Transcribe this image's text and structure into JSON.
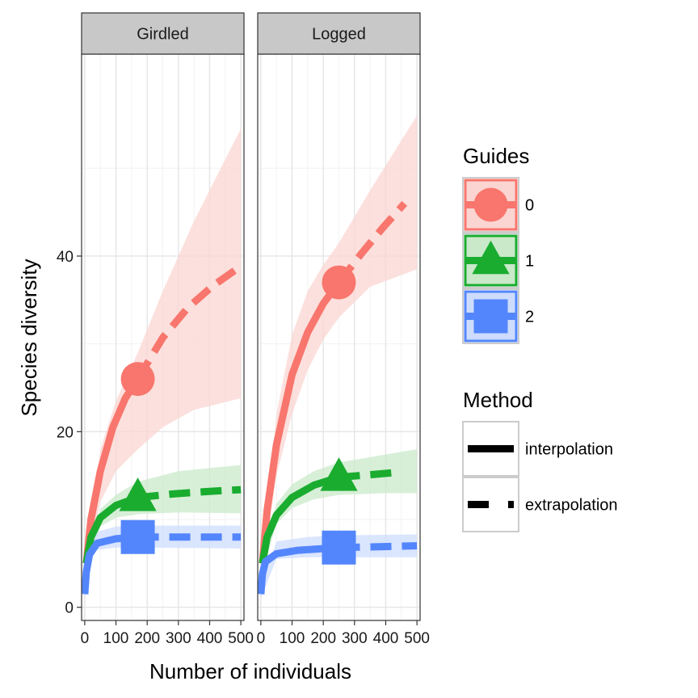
{
  "chart_data": {
    "type": "line",
    "xlabel": "Number of individuals",
    "ylabel": "Species diversity",
    "xlim": [
      -10,
      510
    ],
    "ylim": [
      -1.5,
      63
    ],
    "x_ticks": [
      0,
      100,
      200,
      300,
      400,
      500
    ],
    "y_ticks": [
      0,
      20,
      40
    ],
    "grid": true,
    "panels": [
      {
        "label": "Girdled",
        "observed_x": 170,
        "series": [
          {
            "guide": "0",
            "observed": [
              170,
              26
            ],
            "interpolation": [
              [
                5,
                5
              ],
              [
                20,
                10
              ],
              [
                50,
                15.5
              ],
              [
                90,
                20.5
              ],
              [
                130,
                23.8
              ],
              [
                170,
                26
              ]
            ],
            "extrapolation": [
              [
                170,
                26
              ],
              [
                250,
                30.7
              ],
              [
                330,
                34.1
              ],
              [
                410,
                36.6
              ],
              [
                490,
                38.6
              ]
            ],
            "ci_lower": [
              [
                5,
                4
              ],
              [
                50,
                12
              ],
              [
                100,
                15.5
              ],
              [
                170,
                18
              ],
              [
                250,
                20.5
              ],
              [
                350,
                22.5
              ],
              [
                500,
                23.8
              ]
            ],
            "ci_upper": [
              [
                5,
                6
              ],
              [
                50,
                18
              ],
              [
                100,
                23.5
              ],
              [
                170,
                29
              ],
              [
                250,
                36
              ],
              [
                350,
                44
              ],
              [
                500,
                54.5
              ]
            ]
          },
          {
            "guide": "1",
            "observed": [
              170,
              12.5
            ],
            "interpolation": [
              [
                5,
                5
              ],
              [
                20,
                8
              ],
              [
                50,
                10.2
              ],
              [
                100,
                11.6
              ],
              [
                170,
                12.5
              ]
            ],
            "extrapolation": [
              [
                170,
                12.5
              ],
              [
                280,
                12.9
              ],
              [
                400,
                13.2
              ],
              [
                500,
                13.4
              ]
            ],
            "ci_lower": [
              [
                5,
                4
              ],
              [
                50,
                9.2
              ],
              [
                100,
                10.2
              ],
              [
                170,
                10.6
              ],
              [
                300,
                10.8
              ],
              [
                500,
                10.7
              ]
            ],
            "ci_upper": [
              [
                5,
                6
              ],
              [
                50,
                11.2
              ],
              [
                100,
                12.8
              ],
              [
                170,
                14.3
              ],
              [
                300,
                15.5
              ],
              [
                500,
                16.2
              ]
            ]
          },
          {
            "guide": "2",
            "observed": [
              170,
              8
            ],
            "interpolation": [
              [
                0,
                1.5
              ],
              [
                5,
                4
              ],
              [
                15,
                6
              ],
              [
                40,
                7.3
              ],
              [
                100,
                7.8
              ],
              [
                170,
                8
              ]
            ],
            "extrapolation": [
              [
                170,
                8
              ],
              [
                300,
                8
              ],
              [
                500,
                8
              ]
            ],
            "ci_lower": [
              [
                0,
                1
              ],
              [
                30,
                6.5
              ],
              [
                100,
                6.8
              ],
              [
                170,
                6.8
              ],
              [
                500,
                6.7
              ]
            ],
            "ci_upper": [
              [
                0,
                2
              ],
              [
                30,
                8.5
              ],
              [
                100,
                9.2
              ],
              [
                170,
                9.3
              ],
              [
                500,
                9.3
              ]
            ]
          }
        ]
      },
      {
        "label": "Logged",
        "observed_x": 250,
        "series": [
          {
            "guide": "0",
            "observed": [
              250,
              37
            ],
            "interpolation": [
              [
                5,
                5
              ],
              [
                20,
                11
              ],
              [
                50,
                18.5
              ],
              [
                100,
                26.5
              ],
              [
                150,
                31.3
              ],
              [
                200,
                34.6
              ],
              [
                250,
                37
              ]
            ],
            "extrapolation": [
              [
                250,
                37
              ],
              [
                320,
                40.2
              ],
              [
                390,
                43.2
              ],
              [
                460,
                46
              ]
            ],
            "ci_lower": [
              [
                5,
                4
              ],
              [
                50,
                15
              ],
              [
                100,
                22
              ],
              [
                150,
                27
              ],
              [
                200,
                30.5
              ],
              [
                250,
                33
              ],
              [
                350,
                36.5
              ],
              [
                500,
                38.5
              ]
            ],
            "ci_upper": [
              [
                5,
                6
              ],
              [
                50,
                22
              ],
              [
                100,
                31
              ],
              [
                150,
                36
              ],
              [
                200,
                39
              ],
              [
                250,
                41.5
              ],
              [
                350,
                47.5
              ],
              [
                500,
                56
              ]
            ]
          },
          {
            "guide": "1",
            "observed": [
              250,
              14.8
            ],
            "interpolation": [
              [
                5,
                5
              ],
              [
                20,
                8
              ],
              [
                50,
                10.5
              ],
              [
                100,
                12.5
              ],
              [
                170,
                13.9
              ],
              [
                250,
                14.8
              ]
            ],
            "extrapolation": [
              [
                250,
                14.8
              ],
              [
                350,
                15.1
              ],
              [
                450,
                15.4
              ]
            ],
            "ci_lower": [
              [
                5,
                4
              ],
              [
                50,
                9.5
              ],
              [
                100,
                11.3
              ],
              [
                170,
                12.3
              ],
              [
                250,
                12.8
              ],
              [
                400,
                13
              ],
              [
                500,
                13
              ]
            ],
            "ci_upper": [
              [
                5,
                6
              ],
              [
                50,
                11.8
              ],
              [
                100,
                14
              ],
              [
                170,
                15.5
              ],
              [
                250,
                16.5
              ],
              [
                400,
                17.4
              ],
              [
                500,
                18
              ]
            ]
          },
          {
            "guide": "2",
            "observed": [
              250,
              6.8
            ],
            "interpolation": [
              [
                0,
                1.5
              ],
              [
                5,
                3.8
              ],
              [
                15,
                5.2
              ],
              [
                50,
                6.1
              ],
              [
                120,
                6.5
              ],
              [
                250,
                6.8
              ]
            ],
            "extrapolation": [
              [
                250,
                6.8
              ],
              [
                380,
                6.9
              ],
              [
                500,
                7
              ]
            ],
            "ci_lower": [
              [
                0,
                1
              ],
              [
                50,
                5.5
              ],
              [
                150,
                5.7
              ],
              [
                250,
                5.7
              ],
              [
                500,
                5.7
              ]
            ],
            "ci_upper": [
              [
                0,
                2
              ],
              [
                50,
                7.5
              ],
              [
                150,
                8
              ],
              [
                250,
                8.2
              ],
              [
                500,
                8.3
              ]
            ]
          }
        ]
      }
    ],
    "legends": {
      "guides": {
        "title": "Guides",
        "items": [
          {
            "label": "0",
            "shape": "circle",
            "color": "#f8766d",
            "fill": "#fbd5d2"
          },
          {
            "label": "1",
            "shape": "triangle",
            "color": "#1aac2f",
            "fill": "#c9e9c9"
          },
          {
            "label": "2",
            "shape": "square",
            "color": "#5386fc",
            "fill": "#cddcfd"
          }
        ]
      },
      "method": {
        "title": "Method",
        "items": [
          {
            "label": "interpolation",
            "style": "solid"
          },
          {
            "label": "extrapolation",
            "style": "dashed"
          }
        ]
      }
    }
  }
}
